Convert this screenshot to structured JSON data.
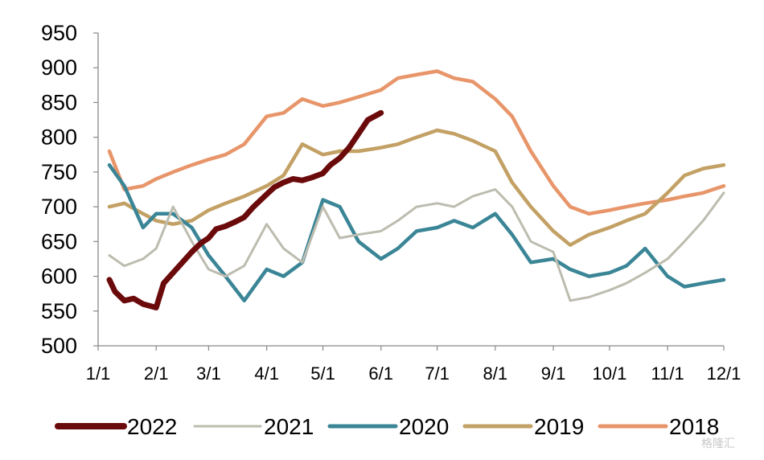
{
  "chart_data": {
    "type": "line",
    "title": "",
    "xlabel": "",
    "ylabel": "",
    "ylim": [
      500,
      950
    ],
    "yticks": [
      "500",
      "550",
      "600",
      "650",
      "700",
      "750",
      "800",
      "850",
      "900",
      "950"
    ],
    "xticks": [
      "1/1",
      "2/1",
      "3/1",
      "4/1",
      "5/1",
      "6/1",
      "7/1",
      "8/1",
      "9/1",
      "10/1",
      "11/1",
      "12/1"
    ],
    "legend_position": "bottom",
    "grid": false,
    "series": [
      {
        "name": "2022",
        "color": "#6b0a0a",
        "x": [
          "1/7",
          "1/10",
          "1/15",
          "1/20",
          "1/25",
          "2/1",
          "2/5",
          "2/10",
          "2/15",
          "2/20",
          "2/25",
          "3/1",
          "3/5",
          "3/10",
          "3/15",
          "3/20",
          "3/25",
          "4/1",
          "4/5",
          "4/10",
          "4/15",
          "4/20",
          "4/25",
          "5/1",
          "5/5",
          "5/10",
          "5/15",
          "5/20",
          "5/25",
          "6/1"
        ],
        "y": [
          595,
          578,
          565,
          568,
          560,
          555,
          590,
          605,
          620,
          635,
          648,
          655,
          668,
          672,
          678,
          685,
          700,
          718,
          728,
          735,
          740,
          738,
          742,
          748,
          760,
          770,
          785,
          805,
          825,
          835
        ]
      },
      {
        "name": "2021",
        "color": "#bdbcaf",
        "x": [
          "1/7",
          "1/15",
          "1/25",
          "2/1",
          "2/10",
          "2/20",
          "3/1",
          "3/10",
          "3/20",
          "4/1",
          "4/10",
          "4/20",
          "5/1",
          "5/10",
          "5/20",
          "6/1",
          "6/10",
          "6/20",
          "7/1",
          "7/10",
          "7/20",
          "8/1",
          "8/10",
          "8/20",
          "9/1",
          "9/10",
          "9/20",
          "10/1",
          "10/10",
          "10/20",
          "11/1",
          "11/10",
          "11/20",
          "12/1"
        ],
        "y": [
          630,
          615,
          625,
          640,
          700,
          650,
          610,
          600,
          615,
          675,
          640,
          620,
          700,
          655,
          660,
          665,
          680,
          700,
          705,
          700,
          715,
          725,
          700,
          650,
          635,
          565,
          570,
          580,
          590,
          605,
          625,
          650,
          680,
          720
        ]
      },
      {
        "name": "2020",
        "color": "#3a8596",
        "x": [
          "1/7",
          "1/15",
          "1/25",
          "2/1",
          "2/10",
          "2/20",
          "3/1",
          "3/10",
          "3/20",
          "4/1",
          "4/10",
          "4/20",
          "5/1",
          "5/10",
          "5/20",
          "6/1",
          "6/10",
          "6/20",
          "7/1",
          "7/10",
          "7/20",
          "8/1",
          "8/10",
          "8/20",
          "9/1",
          "9/10",
          "9/20",
          "10/1",
          "10/10",
          "10/20",
          "11/1",
          "11/10",
          "11/20",
          "12/1"
        ],
        "y": [
          760,
          730,
          670,
          690,
          690,
          670,
          630,
          600,
          565,
          610,
          600,
          620,
          710,
          700,
          650,
          625,
          640,
          665,
          670,
          680,
          670,
          690,
          660,
          620,
          625,
          610,
          600,
          605,
          615,
          640,
          600,
          585,
          590,
          595
        ]
      },
      {
        "name": "2019",
        "color": "#c3a064",
        "x": [
          "1/7",
          "1/15",
          "1/25",
          "2/1",
          "2/10",
          "2/20",
          "3/1",
          "3/10",
          "3/20",
          "4/1",
          "4/10",
          "4/20",
          "5/1",
          "5/10",
          "5/20",
          "6/1",
          "6/10",
          "6/20",
          "7/1",
          "7/10",
          "7/20",
          "8/1",
          "8/10",
          "8/20",
          "9/1",
          "9/10",
          "9/20",
          "10/1",
          "10/10",
          "10/20",
          "11/1",
          "11/10",
          "11/20",
          "12/1"
        ],
        "y": [
          700,
          705,
          690,
          680,
          675,
          680,
          695,
          705,
          715,
          730,
          745,
          790,
          775,
          780,
          780,
          785,
          790,
          800,
          810,
          805,
          795,
          780,
          735,
          700,
          665,
          645,
          660,
          670,
          680,
          690,
          720,
          745,
          755,
          760
        ]
      },
      {
        "name": "2018",
        "color": "#e8956a",
        "x": [
          "1/7",
          "1/15",
          "1/25",
          "2/1",
          "2/10",
          "2/20",
          "3/1",
          "3/10",
          "3/20",
          "4/1",
          "4/10",
          "4/20",
          "5/1",
          "5/10",
          "5/20",
          "6/1",
          "6/10",
          "6/20",
          "7/1",
          "7/10",
          "7/20",
          "8/1",
          "8/10",
          "8/20",
          "9/1",
          "9/10",
          "9/20",
          "10/1",
          "10/10",
          "10/20",
          "11/1",
          "11/10",
          "11/20",
          "12/1"
        ],
        "y": [
          780,
          725,
          730,
          740,
          750,
          760,
          768,
          775,
          790,
          830,
          835,
          855,
          845,
          850,
          858,
          868,
          885,
          890,
          895,
          885,
          880,
          855,
          830,
          780,
          730,
          700,
          690,
          695,
          700,
          705,
          710,
          715,
          720,
          730
        ]
      }
    ]
  }
}
